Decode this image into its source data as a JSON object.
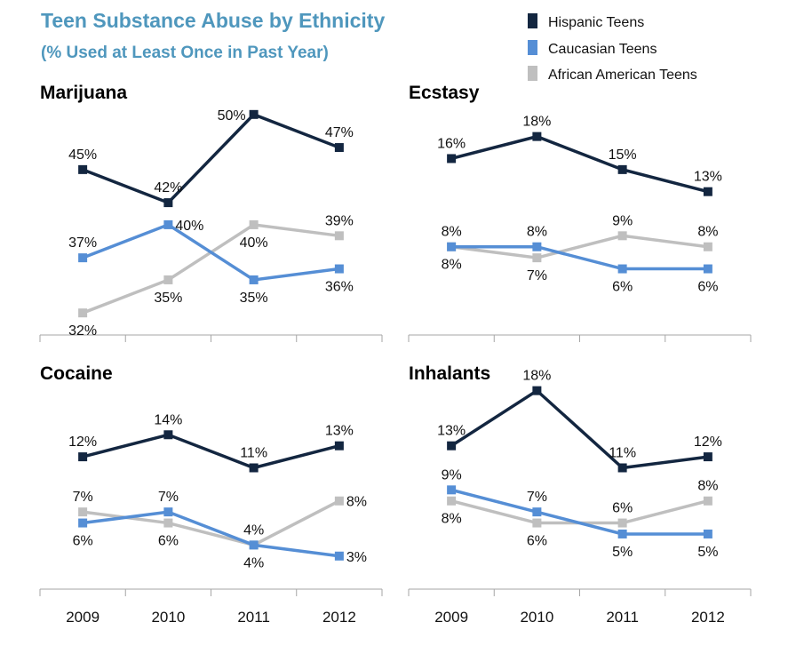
{
  "colors": {
    "title": "#4f97bd",
    "hispanic": "#132640",
    "caucasian": "#558ed5",
    "african_american": "#bfbfbf",
    "axis": "#a6a6a6"
  },
  "chart_data": {
    "type": "line",
    "title": "Teen Substance Abuse by Ethnicity",
    "subtitle": "(% Used at Least Once in Past Year)",
    "legend": {
      "placement": "top-right",
      "entries": [
        "Hispanic Teens",
        "Caucasian Teens",
        "African American Teens"
      ]
    },
    "x": [
      "2009",
      "2010",
      "2011",
      "2012"
    ],
    "grid": false,
    "panels": [
      {
        "name": "Marijuana",
        "ylim": [
          30,
          52
        ],
        "series": [
          {
            "name": "Hispanic Teens",
            "values": [
              45,
              42,
              50,
              47
            ],
            "label_pos": [
              "above",
              "above",
              "left",
              "above"
            ]
          },
          {
            "name": "Caucasian Teens",
            "values": [
              37,
              40,
              35,
              36
            ],
            "label_pos": [
              "above",
              "right",
              "below",
              "below"
            ]
          },
          {
            "name": "African American Teens",
            "values": [
              32,
              35,
              40,
              39
            ],
            "label_pos": [
              "below",
              "below",
              "below",
              "above"
            ]
          }
        ]
      },
      {
        "name": "Ecstasy",
        "ylim": [
          0,
          22
        ],
        "series": [
          {
            "name": "Hispanic Teens",
            "values": [
              16,
              18,
              15,
              13
            ],
            "label_pos": [
              "above",
              "above",
              "above",
              "above"
            ]
          },
          {
            "name": "Caucasian Teens",
            "values": [
              8,
              8,
              6,
              6
            ],
            "label_pos": [
              "above",
              "above",
              "below",
              "below"
            ]
          },
          {
            "name": "African American Teens",
            "values": [
              8,
              7,
              9,
              8
            ],
            "label_pos": [
              "below",
              "below",
              "above",
              "above"
            ]
          }
        ]
      },
      {
        "name": "Cocaine",
        "ylim": [
          0,
          22
        ],
        "series": [
          {
            "name": "Hispanic Teens",
            "values": [
              12,
              14,
              11,
              13
            ],
            "label_pos": [
              "above",
              "above",
              "above",
              "above"
            ]
          },
          {
            "name": "Caucasian Teens",
            "values": [
              6,
              7,
              4,
              3
            ],
            "label_pos": [
              "below",
              "above",
              "below",
              "right"
            ]
          },
          {
            "name": "African American Teens",
            "values": [
              7,
              6,
              4,
              8
            ],
            "label_pos": [
              "above",
              "below",
              "above",
              "right"
            ]
          }
        ]
      },
      {
        "name": "Inhalants",
        "ylim": [
          0,
          22
        ],
        "series": [
          {
            "name": "Hispanic Teens",
            "values": [
              13,
              18,
              11,
              12
            ],
            "label_pos": [
              "above",
              "above",
              "above",
              "above"
            ]
          },
          {
            "name": "Caucasian Teens",
            "values": [
              9,
              7,
              5,
              5
            ],
            "label_pos": [
              "above",
              "above",
              "below",
              "below"
            ]
          },
          {
            "name": "African American Teens",
            "values": [
              8,
              6,
              6,
              8
            ],
            "label_pos": [
              "below",
              "below",
              "above",
              "above"
            ]
          }
        ]
      }
    ]
  }
}
